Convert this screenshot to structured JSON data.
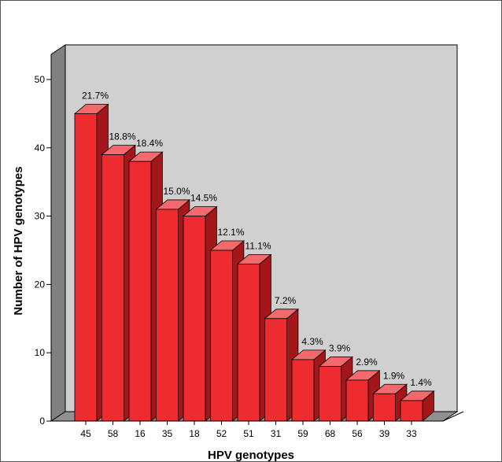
{
  "chart_data": {
    "type": "bar",
    "title": "",
    "xlabel": "HPV genotypes",
    "ylabel": "Number of HPV genotypes",
    "ylim": [
      0,
      50
    ],
    "yticks": [
      0,
      10,
      20,
      30,
      40,
      50
    ],
    "grid": false,
    "style": "3d",
    "categories": [
      "45",
      "58",
      "16",
      "35",
      "18",
      "52",
      "51",
      "31",
      "59",
      "68",
      "56",
      "39",
      "33"
    ],
    "values": [
      45,
      39,
      38,
      31,
      30,
      25,
      23,
      15,
      9,
      8,
      6,
      4,
      3
    ],
    "data_labels": [
      "21.7%",
      "18.8%",
      "18.4%",
      "15.0%",
      "14.5%",
      "12.1%",
      "11.1%",
      "7.2%",
      "4.3%",
      "3.9%",
      "2.9%",
      "1.9%",
      "1.4%"
    ],
    "colors": {
      "bar_front": "#ee2b2f",
      "bar_top": "#f4696c",
      "bar_side": "#a3161a",
      "back_wall": "#d0d0d0",
      "side_wall": "#808080",
      "floor": "#909090"
    }
  }
}
